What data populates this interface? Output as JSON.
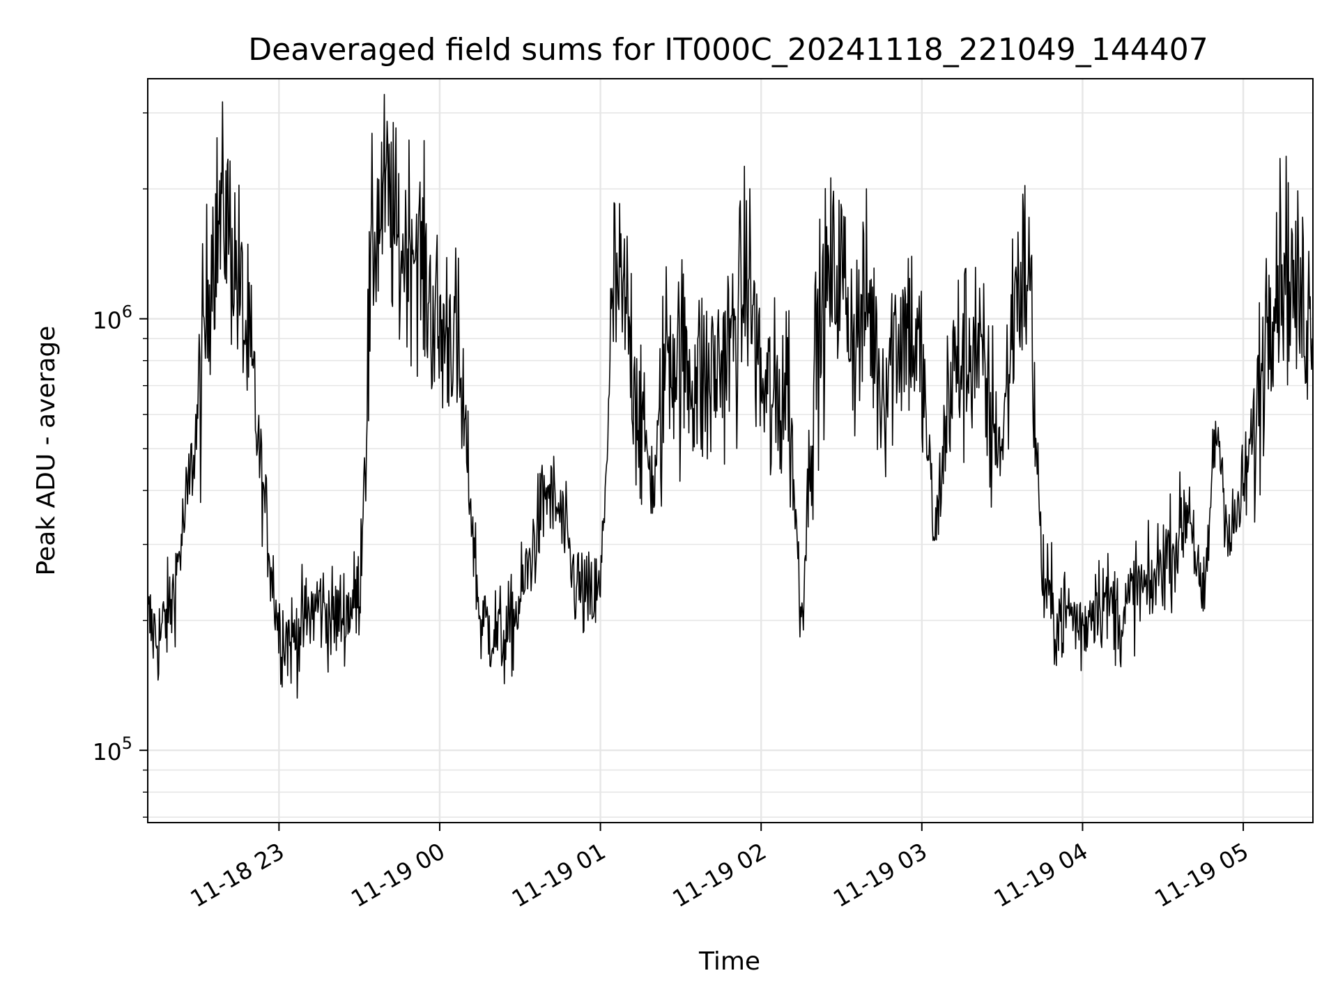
{
  "chart_data": {
    "type": "line",
    "title": "Deaveraged field sums for IT000C_20241118_221049_144407",
    "xlabel": "Time",
    "ylabel": "Peak ADU - average",
    "yscale": "log",
    "ylim": [
      68000,
      3600000
    ],
    "xlim": [
      "2024-11-18 22:11",
      "2024-11-19 05:26"
    ],
    "grid": true,
    "line_color": "#000000",
    "x_ticks": [
      {
        "time": "2024-11-18 23:00",
        "label": "11-18 23"
      },
      {
        "time": "2024-11-19 00:00",
        "label": "11-19 00"
      },
      {
        "time": "2024-11-19 01:00",
        "label": "11-19 01"
      },
      {
        "time": "2024-11-19 02:00",
        "label": "11-19 02"
      },
      {
        "time": "2024-11-19 03:00",
        "label": "11-19 03"
      },
      {
        "time": "2024-11-19 04:00",
        "label": "11-19 04"
      },
      {
        "time": "2024-11-19 05:00",
        "label": "11-19 05"
      }
    ],
    "y_ticks": [
      {
        "value": 100000,
        "base": "10",
        "exp": "5"
      },
      {
        "value": 1000000,
        "base": "10",
        "exp": "6"
      }
    ],
    "series": [
      {
        "x": [
          "22:11",
          "22:15",
          "22:20",
          "22:25",
          "22:30",
          "22:35",
          "22:40",
          "22:45",
          "22:50",
          "22:55",
          "23:00",
          "23:05",
          "23:10",
          "23:15",
          "23:20",
          "23:25",
          "23:30",
          "23:35",
          "23:40",
          "23:45",
          "23:50",
          "23:55",
          "00:00",
          "00:05",
          "00:10",
          "00:15",
          "00:20",
          "00:25",
          "00:30",
          "00:35",
          "00:40",
          "00:45",
          "00:50",
          "00:55",
          "01:00",
          "01:05",
          "01:10",
          "01:15",
          "01:20",
          "01:25",
          "01:30",
          "01:35",
          "01:40",
          "01:45",
          "01:50",
          "01:55",
          "02:00",
          "02:05",
          "02:10",
          "02:15",
          "02:20",
          "02:25",
          "02:30",
          "02:35",
          "02:40",
          "02:45",
          "02:50",
          "02:55",
          "03:00",
          "03:05",
          "03:10",
          "03:15",
          "03:20",
          "03:25",
          "03:30",
          "03:35",
          "03:40",
          "03:45",
          "03:50",
          "03:55",
          "04:00",
          "04:05",
          "04:10",
          "04:15",
          "04:20",
          "04:25",
          "04:30",
          "04:35",
          "04:40",
          "04:45",
          "04:50",
          "04:55",
          "05:00",
          "05:05",
          "05:10",
          "05:15",
          "05:20",
          "05:25"
        ],
        "y": [
          200000,
          180000,
          220000,
          350000,
          600000,
          1500000,
          1800000,
          1200000,
          700000,
          350000,
          190000,
          180000,
          200000,
          220000,
          200000,
          210000,
          230000,
          1500000,
          2000000,
          1400000,
          1600000,
          1200000,
          900000,
          1000000,
          500000,
          200000,
          190000,
          180000,
          220000,
          300000,
          400000,
          350000,
          250000,
          220000,
          230000,
          1200000,
          1000000,
          600000,
          400000,
          900000,
          800000,
          750000,
          700000,
          800000,
          900000,
          1300000,
          700000,
          600000,
          750000,
          200000,
          800000,
          1200000,
          1300000,
          900000,
          1100000,
          700000,
          900000,
          1000000,
          750000,
          300000,
          700000,
          800000,
          900000,
          600000,
          500000,
          1200000,
          1300000,
          250000,
          200000,
          210000,
          190000,
          230000,
          220000,
          200000,
          240000,
          230000,
          280000,
          300000,
          380000,
          200000,
          600000,
          300000,
          400000,
          600000,
          1200000,
          1400000,
          1100000,
          1050000
        ]
      }
    ]
  }
}
